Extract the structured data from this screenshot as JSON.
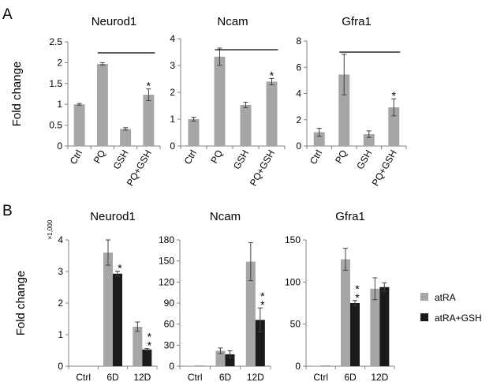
{
  "panels": {
    "a": "A",
    "b": "B"
  },
  "colors": {
    "bar_a": "#a6a6a6",
    "atRA": "#a6a6a6",
    "atRA_GSH": "#1a1a1a",
    "axis": "#808080",
    "error": "#404040"
  },
  "chart_data": [
    {
      "type": "bar",
      "panel": "A",
      "title": "Neurod1",
      "ylabel": "Fold change",
      "categories": [
        "Ctrl",
        "PQ",
        "GSH",
        "PQ+GSH"
      ],
      "values": [
        1.0,
        1.97,
        0.41,
        1.23
      ],
      "errors": [
        0.02,
        0.03,
        0.03,
        0.14
      ],
      "ylim": [
        0,
        2.5
      ],
      "yticks": [
        "0",
        "0.5",
        "1",
        "1.5",
        "2",
        "2.5"
      ],
      "stars": [
        "",
        "",
        "",
        "*"
      ],
      "comparison_line": {
        "from": "PQ",
        "to": "PQ+GSH"
      }
    },
    {
      "type": "bar",
      "panel": "A",
      "title": "Ncam",
      "categories": [
        "Ctrl",
        "PQ",
        "GSH",
        "PQ+GSH"
      ],
      "values": [
        1.0,
        3.33,
        1.53,
        2.4
      ],
      "errors": [
        0.07,
        0.32,
        0.1,
        0.12
      ],
      "ylim": [
        0,
        4
      ],
      "yticks": [
        "0",
        "1",
        "2",
        "3",
        "4"
      ],
      "stars": [
        "",
        "",
        "",
        "*"
      ],
      "comparison_line": {
        "from": "PQ",
        "to": "PQ+GSH"
      }
    },
    {
      "type": "bar",
      "panel": "A",
      "title": "Gfra1",
      "categories": [
        "Ctrl",
        "PQ",
        "GSH",
        "PQ+GSH"
      ],
      "values": [
        1.05,
        5.45,
        0.9,
        2.95
      ],
      "errors": [
        0.3,
        1.55,
        0.25,
        0.65
      ],
      "ylim": [
        0,
        8
      ],
      "yticks": [
        "0",
        "2",
        "4",
        "6",
        "8"
      ],
      "stars": [
        "",
        "",
        "",
        "*"
      ],
      "comparison_line": {
        "from": "PQ",
        "to": "PQ+GSH"
      }
    },
    {
      "type": "bar",
      "panel": "B",
      "title": "Neurod1",
      "ylabel": "Fold change",
      "scale_label": "×1,000",
      "categories": [
        "Ctrl",
        "6D",
        "12D"
      ],
      "series": [
        {
          "name": "atRA",
          "values": [
            0,
            3.6,
            1.25
          ],
          "errors": [
            0,
            0.4,
            0.15
          ]
        },
        {
          "name": "atRA+GSH",
          "values": [
            0,
            2.93,
            0.53
          ],
          "errors": [
            0,
            0.08,
            0.03
          ]
        }
      ],
      "ylim": [
        0,
        4
      ],
      "yticks": [
        "0",
        "1",
        "2",
        "3",
        "4"
      ],
      "stars": [
        "",
        "*",
        "* *"
      ]
    },
    {
      "type": "bar",
      "panel": "B",
      "title": "Ncam",
      "categories": [
        "Ctrl",
        "6D",
        "12D"
      ],
      "series": [
        {
          "name": "atRA",
          "values": [
            0.4,
            22,
            149
          ],
          "errors": [
            0,
            4,
            27
          ]
        },
        {
          "name": "atRA+GSH",
          "values": [
            0.4,
            17,
            66
          ],
          "errors": [
            0,
            5,
            17
          ]
        }
      ],
      "ylim": [
        0,
        180
      ],
      "yticks": [
        "0",
        "30",
        "60",
        "90",
        "120",
        "150",
        "180"
      ],
      "stars": [
        "",
        "",
        "* *"
      ]
    },
    {
      "type": "bar",
      "panel": "B",
      "title": "Gfra1",
      "categories": [
        "Ctrl",
        "6D",
        "12D"
      ],
      "series": [
        {
          "name": "atRA",
          "values": [
            0.4,
            127,
            92
          ],
          "errors": [
            0,
            13,
            13
          ]
        },
        {
          "name": "atRA+GSH",
          "values": [
            0.4,
            75,
            94
          ],
          "errors": [
            0,
            3,
            5
          ]
        }
      ],
      "ylim": [
        0,
        150
      ],
      "yticks": [
        "0",
        "50",
        "100",
        "150"
      ],
      "stars": [
        "",
        "* *",
        ""
      ]
    }
  ],
  "legend": [
    {
      "label": "atRA",
      "color": "#a6a6a6"
    },
    {
      "label": "atRA+GSH",
      "color": "#1a1a1a"
    }
  ]
}
